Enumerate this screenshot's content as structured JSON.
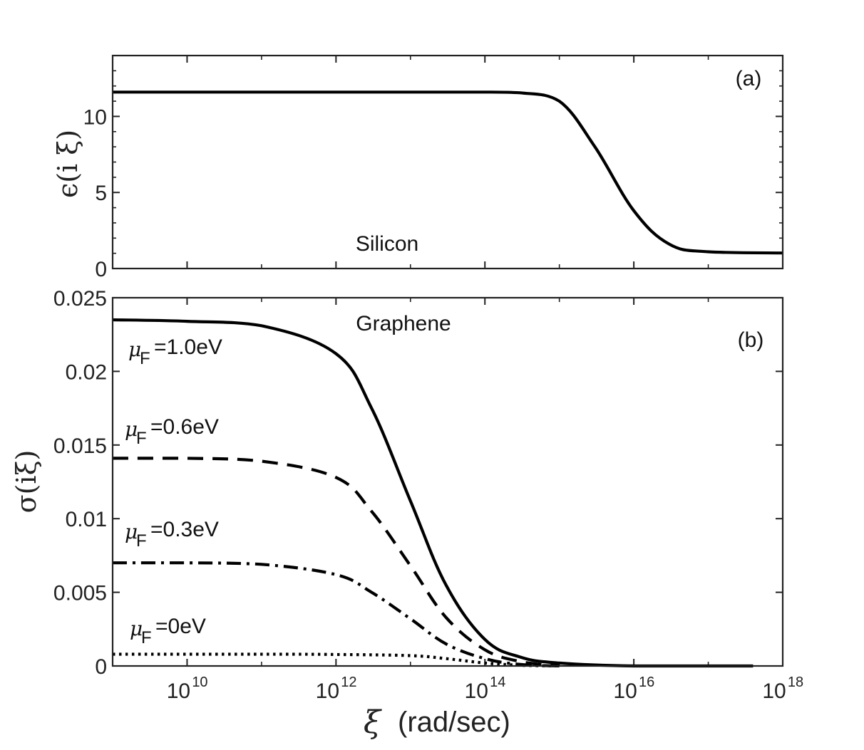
{
  "chart_data": [
    {
      "panel": "a",
      "type": "line",
      "panel_label": "(a)",
      "annotation": "Silicon",
      "ylabel": "ϵ(i ξ)",
      "xscale": "log",
      "xlim": [
        1000000000.0,
        1e+18
      ],
      "ylim": [
        0,
        14
      ],
      "yticks": [
        0,
        5,
        10
      ],
      "ytick_labels": [
        "0",
        "5",
        "10"
      ],
      "series": [
        {
          "name": "Silicon",
          "style": "solid",
          "x": [
            1000000000.0,
            100000000000.0,
            10000000000000.0,
            100000000000000.0,
            300000000000000.0,
            1000000000000000.0,
            3000000000000000.0,
            1e+16,
            3e+16,
            1e+17,
            1e+18
          ],
          "y": [
            11.6,
            11.6,
            11.6,
            11.6,
            11.55,
            11.0,
            8.0,
            3.8,
            1.6,
            1.1,
            1.02
          ]
        }
      ]
    },
    {
      "panel": "b",
      "type": "line",
      "panel_label": "(b)",
      "annotation": "Graphene",
      "ylabel": "σ(iξ)",
      "xlabel_symbol": "ξ",
      "xlabel_unit": "(rad/sec)",
      "xscale": "log",
      "xlim": [
        1000000000.0,
        1e+18
      ],
      "ylim": [
        0,
        0.025
      ],
      "yticks": [
        0,
        0.005,
        0.01,
        0.015,
        0.02,
        0.025
      ],
      "ytick_labels": [
        "0",
        "0.005",
        "0.01",
        "0.015",
        "0.02",
        "0.025"
      ],
      "xticks": [
        10000000000.0,
        1000000000000.0,
        100000000000000.0,
        1e+16,
        1e+18
      ],
      "xtick_base": "10",
      "xtick_exponents": [
        "10",
        "12",
        "14",
        "16",
        "18"
      ],
      "series": [
        {
          "name": "μF=1.0eV",
          "mu_symbol": "μ",
          "mu_sub": "F",
          "label_value": "=1.0eV",
          "style": "solid",
          "x": [
            1000000000.0,
            10000000000.0,
            100000000000.0,
            1000000000000.0,
            3000000000000.0,
            10000000000000.0,
            30000000000000.0,
            100000000000000.0,
            300000000000000.0,
            1000000000000000.0,
            1e+16,
            4e+17
          ],
          "y": [
            0.0235,
            0.0234,
            0.0231,
            0.0212,
            0.0175,
            0.0112,
            0.0055,
            0.0018,
            0.0006,
            0.0002,
            0.0,
            0.0
          ]
        },
        {
          "name": "μF=0.6eV",
          "mu_symbol": "μ",
          "mu_sub": "F",
          "label_value": "=0.6eV",
          "style": "dashed",
          "x": [
            1000000000.0,
            10000000000.0,
            100000000000.0,
            1000000000000.0,
            3000000000000.0,
            10000000000000.0,
            30000000000000.0,
            100000000000000.0,
            300000000000000.0,
            1000000000000000.0
          ],
          "y": [
            0.0141,
            0.0141,
            0.0139,
            0.0128,
            0.0105,
            0.0068,
            0.0033,
            0.0011,
            0.0003,
            0.0
          ]
        },
        {
          "name": "μF=0.3eV",
          "mu_symbol": "μ",
          "mu_sub": "F",
          "label_value": "=0.3eV",
          "style": "dashdot",
          "x": [
            1000000000.0,
            10000000000.0,
            100000000000.0,
            1000000000000.0,
            3000000000000.0,
            10000000000000.0,
            30000000000000.0,
            100000000000000.0,
            300000000000000.0,
            1000000000000000.0
          ],
          "y": [
            0.007,
            0.007,
            0.0069,
            0.0062,
            0.005,
            0.0032,
            0.0015,
            0.0005,
            0.0001,
            0.0
          ]
        },
        {
          "name": "μF=0eV",
          "mu_symbol": "μ",
          "mu_sub": "F",
          "label_value": "=0eV",
          "style": "dotted",
          "x": [
            1000000000.0,
            100000000000.0,
            1000000000000.0,
            10000000000000.0,
            30000000000000.0,
            100000000000000.0,
            300000000000000.0,
            1000000000000000.0
          ],
          "y": [
            0.0008,
            0.0008,
            0.00078,
            0.0007,
            0.0005,
            0.0002,
            5e-05,
            0.0
          ]
        }
      ]
    }
  ]
}
